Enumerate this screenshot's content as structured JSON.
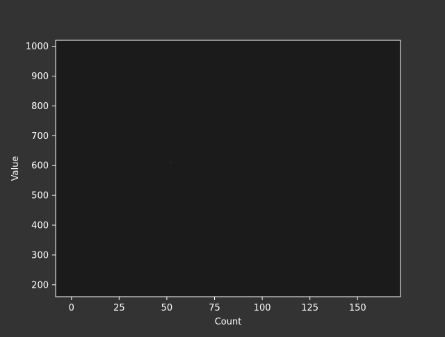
{
  "chart_data": {
    "type": "scatter",
    "xlabel": "Count",
    "ylabel": "Value",
    "xlim": [
      -8.3,
      172.5
    ],
    "ylim": [
      160,
      1020
    ],
    "xticks": [
      0,
      25,
      50,
      75,
      100,
      125,
      150
    ],
    "yticks": [
      200,
      300,
      400,
      500,
      600,
      700,
      800,
      900,
      1000
    ],
    "grid": false,
    "series": [
      {
        "points": [
          {
            "x": 52,
            "y": 610
          }
        ],
        "color": "#202020"
      }
    ]
  },
  "colors": {
    "figure_background": "#333333",
    "plot_background": "#1b1b1b",
    "axis": "#ffffff",
    "text": "#ffffff"
  }
}
